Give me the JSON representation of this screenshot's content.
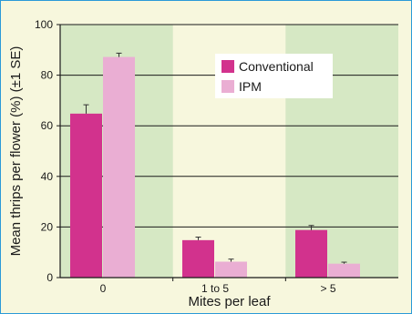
{
  "chart_data": {
    "type": "bar",
    "xlabel": "Mites per leaf",
    "ylabel": "Mean thrips per flower (%) (±1 SE)",
    "categories": [
      "0",
      "1 to 5",
      "> 5"
    ],
    "ylim": [
      0,
      100
    ],
    "yticks": [
      0,
      20,
      40,
      60,
      80,
      100
    ],
    "grid": true,
    "legend_position": "top-right",
    "series": [
      {
        "name": "Conventional",
        "color": "#d2328d",
        "values": [
          64.8,
          14.8,
          18.8
        ],
        "errors": [
          3.5,
          1.2,
          1.8
        ]
      },
      {
        "name": "IPM",
        "color": "#eaaed3",
        "values": [
          87.2,
          6.3,
          5.5
        ],
        "errors": [
          1.5,
          1.0,
          0.6
        ]
      }
    ],
    "background": {
      "panel": "#f7f7dd",
      "shaded_band": "#d6e8c4"
    }
  }
}
